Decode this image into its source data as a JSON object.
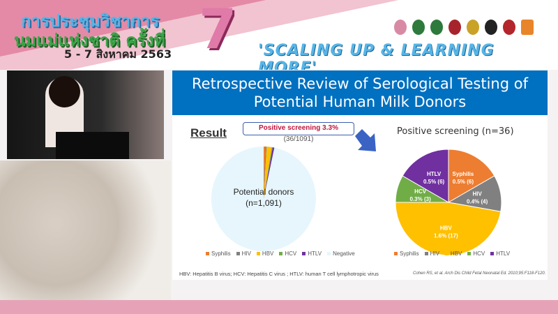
{
  "banner": {
    "title_line1": "การประชุมวิชาการ",
    "title_line2": "นมแม่แห่งชาติ ครั้งที่",
    "dates": "5 - 7 สิงหาคม 2563",
    "number": "7",
    "slogan": "'SCALING UP & LEARNING MORE'"
  },
  "slide": {
    "title": "Retrospective Review of Serological Testing of Potential Human Milk Donors",
    "result_label": "Result",
    "callout_bold": "Positive screening 3.3%",
    "callout_rest": " (36/1091)",
    "center_label_1": "Potential donors",
    "center_label_2": "(n=1,091)",
    "pie2_title": "Positive screening (n=36)",
    "footnote": "HBV: Hepatitis B virus; HCV: Hepatitis C virus ; HTLV: human T cell lymphotropic virus",
    "citation": "Cohen RS, et al. Arch Dis Child Fetal Neonatal Ed. 2010;95:F118-F120."
  },
  "chart_data": [
    {
      "type": "pie",
      "title": "",
      "categories": [
        "Syphilis",
        "HIV",
        "HBV",
        "HCV",
        "HTLV",
        "Negative"
      ],
      "values": [
        6,
        4,
        17,
        3,
        6,
        1055
      ],
      "colors": [
        "#ed7d31",
        "#808080",
        "#ffc000",
        "#70ad47",
        "#7030a0",
        "#e6f6fc"
      ]
    },
    {
      "type": "pie",
      "title": "Positive screening (n=36)",
      "categories": [
        "Syphilis",
        "HIV",
        "HBV",
        "HCV",
        "HTLV"
      ],
      "values": [
        6,
        4,
        17,
        3,
        6
      ],
      "labels": [
        "0.5% (6)",
        "0.4% (4)",
        "1.6% (17)",
        "0.3% (3)",
        "0.5% (6)"
      ],
      "colors": [
        "#ed7d31",
        "#808080",
        "#ffc000",
        "#70ad47",
        "#7030a0"
      ]
    }
  ]
}
